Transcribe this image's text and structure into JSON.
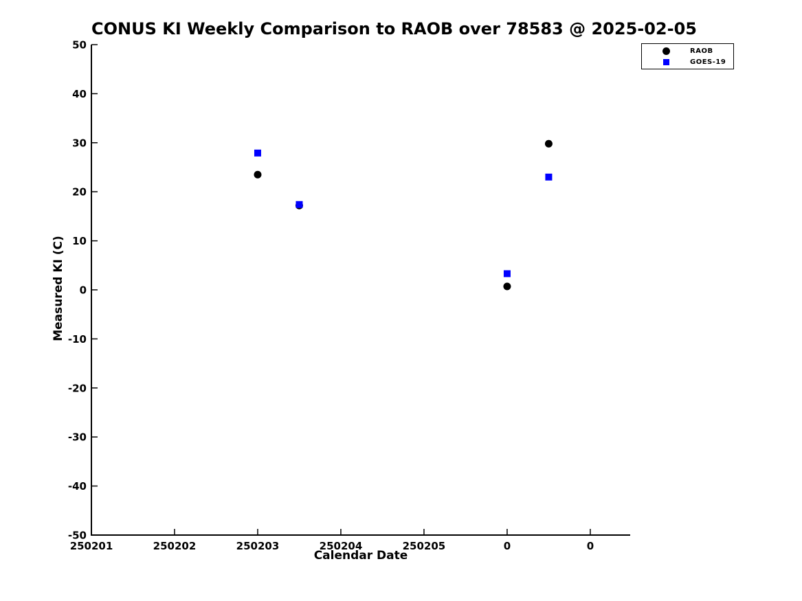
{
  "figure": {
    "background": "#ffffff",
    "axis_color": "#000000"
  },
  "chart_data": {
    "type": "scatter",
    "title": "CONUS KI Weekly Comparison to RAOB over 78583 @ 2025-02-05",
    "xlabel": "Calendar Date",
    "ylabel": "Measured KI (C)",
    "x_tick_labels": [
      "250201",
      "250202",
      "250203",
      "250204",
      "250205",
      "0",
      "0"
    ],
    "x_tick_units": [
      0,
      1,
      2,
      3,
      4,
      5,
      6
    ],
    "xlim": [
      0,
      6.48
    ],
    "ylim": [
      -50,
      50
    ],
    "y_ticks": [
      50,
      40,
      30,
      20,
      10,
      0,
      -10,
      -20,
      -30,
      -40,
      -50
    ],
    "grid": false,
    "legend_position": "outside-top-right",
    "series": [
      {
        "name": "RAOB",
        "marker": "circle",
        "color": "#000000",
        "points": [
          [
            2.0,
            23.5
          ],
          [
            2.5,
            17.2
          ],
          [
            5.0,
            0.7
          ],
          [
            5.5,
            29.8
          ]
        ]
      },
      {
        "name": "GOES-19",
        "marker": "square",
        "color": "#0000ff",
        "points": [
          [
            2.0,
            27.9
          ],
          [
            2.5,
            17.4
          ],
          [
            5.0,
            3.3
          ],
          [
            5.5,
            23.0
          ]
        ]
      }
    ]
  }
}
